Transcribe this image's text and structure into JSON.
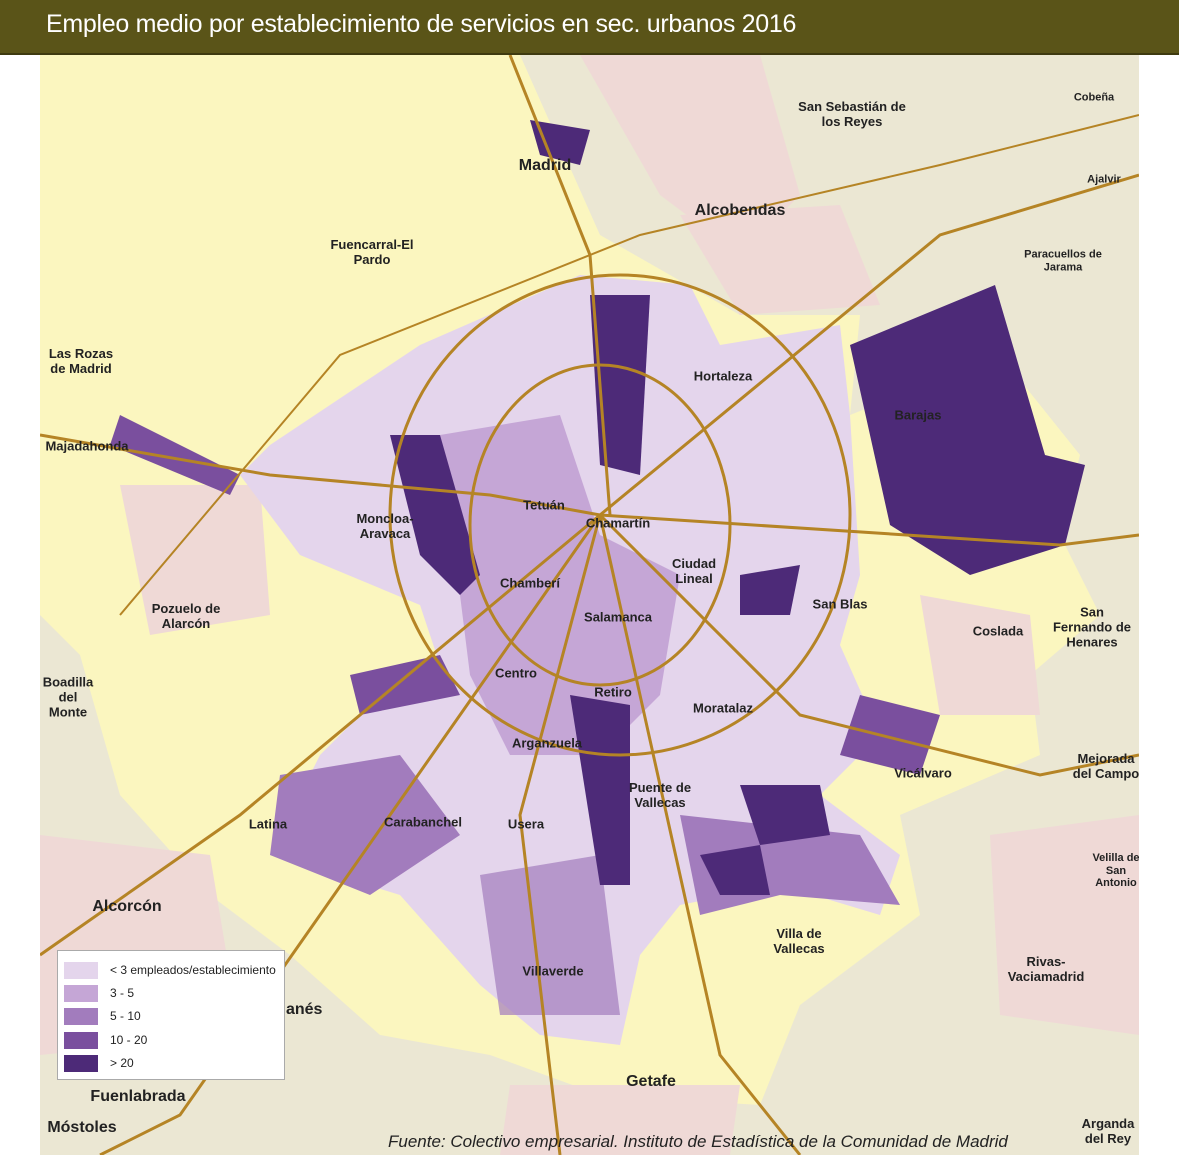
{
  "title": "Empleo medio por establecimiento de servicios en sec. urbanos 2016",
  "colors": {
    "header": "#5a5418",
    "madrid_municipality": "#fbf6bf",
    "other_municipality": "#ebe7d3",
    "urban_other": "#efd9d6",
    "roads": "#b58425"
  },
  "legend": [
    {
      "label": "< 3 empleados/establecimiento",
      "color": "#e4d5ec"
    },
    {
      "label": "3 - 5",
      "color": "#c5a6d6"
    },
    {
      "label": "5 - 10",
      "color": "#a27cbd"
    },
    {
      "label": "10 - 20",
      "color": "#7a4f9e"
    },
    {
      "label": "> 20",
      "color": "#4d2a78"
    }
  ],
  "districts": [
    "Madrid",
    "Fuencarral-El Pardo",
    "Hortaleza",
    "Barajas",
    "Moncloa-Aravaca",
    "Tetuán",
    "Chamartín",
    "Ciudad Lineal",
    "San Blas",
    "Chamberí",
    "Salamanca",
    "Centro",
    "Retiro",
    "Moratalaz",
    "Arganzuela",
    "Vicálvaro",
    "Puente de Vallecas",
    "Latina",
    "Carabanchel",
    "Usera",
    "Villaverde",
    "Villa de Vallecas"
  ],
  "municipalities": [
    "San Sebastián de los Reyes",
    "Cobeña",
    "Ajalvir",
    "Alcobendas",
    "Paracuellos de Jarama",
    "Las Rozas de Madrid",
    "Majadahonda",
    "Pozuelo de Alarcón",
    "Coslada",
    "San Fernando de Henares",
    "Boadilla del Monte",
    "Mejorada del Campo",
    "Alcorcón",
    "Velilla de San Antonio",
    "Rivas-Vaciamadrid",
    "Leganés",
    "Getafe",
    "Fuenlabrada",
    "Móstoles",
    "Arganda del Rey"
  ],
  "source": "Fuente: Colectivo empresarial. Instituto de Estadística de la Comunidad de Madrid"
}
